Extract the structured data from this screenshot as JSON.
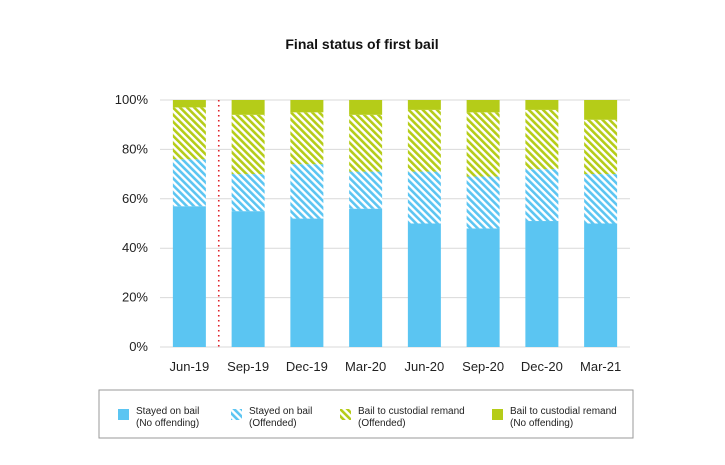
{
  "chart_data": {
    "type": "bar",
    "stacked": true,
    "title": "Final status of first bail",
    "categories": [
      "Jun-19",
      "Sep-19",
      "Dec-19",
      "Mar-20",
      "Jun-20",
      "Sep-20",
      "Dec-20",
      "Mar-21"
    ],
    "series": [
      {
        "name": "Stayed on bail (No offending)",
        "name_lines": [
          "Stayed on bail",
          "(No offending)"
        ],
        "values": [
          57,
          55,
          52,
          56,
          50,
          48,
          51,
          50
        ],
        "color": "#5bc5f2",
        "pattern": "solid"
      },
      {
        "name": "Stayed on bail (Offended)",
        "name_lines": [
          "Stayed on bail",
          "(Offended)"
        ],
        "values": [
          19,
          15,
          22,
          15,
          21,
          21,
          21,
          20
        ],
        "color": "#5bc5f2",
        "pattern": "hatch"
      },
      {
        "name": "Bail to custodial remand (Offended)",
        "name_lines": [
          "Bail to custodial remand",
          "(Offended)"
        ],
        "values": [
          21,
          24,
          21,
          23,
          25,
          26,
          24,
          22
        ],
        "color": "#b5cc18",
        "pattern": "hatch"
      },
      {
        "name": "Bail to custodial remand (No offending)",
        "name_lines": [
          "Bail to custodial remand",
          "(No offending)"
        ],
        "values": [
          3,
          6,
          5,
          6,
          4,
          5,
          4,
          8
        ],
        "color": "#b5cc18",
        "pattern": "solid"
      }
    ],
    "yticks": [
      "0%",
      "20%",
      "40%",
      "60%",
      "80%",
      "100%"
    ],
    "ylim": [
      0,
      100
    ],
    "grid": true,
    "legend_position": "bottom",
    "annotation": "dotted red vertical line between Jun-19 and Sep-19",
    "annotation_color": "#e0202a"
  }
}
